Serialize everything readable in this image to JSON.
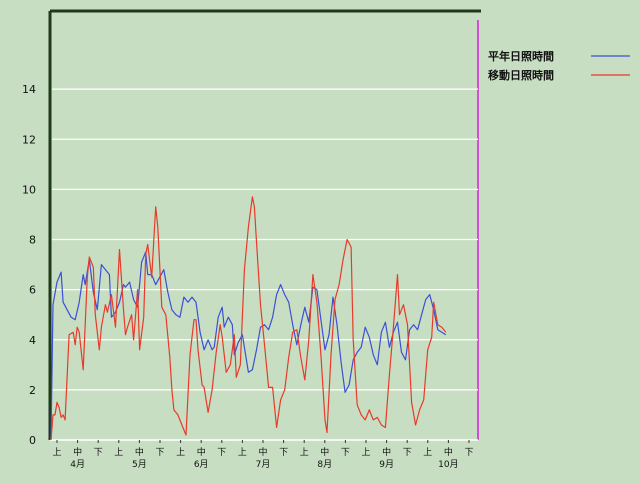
{
  "chart_data": {
    "type": "line",
    "title": "",
    "xlabel": "",
    "ylabel": "",
    "ylim": [
      0,
      16
    ],
    "yticks": [
      0,
      2,
      4,
      6,
      8,
      10,
      12,
      14
    ],
    "grid": true,
    "legend_position": "top-right",
    "x_period_labels": [
      "上",
      "中",
      "下",
      "上",
      "中",
      "下",
      "上",
      "中",
      "下",
      "上",
      "中",
      "下",
      "上",
      "中",
      "下",
      "上",
      "中",
      "下",
      "上",
      "中",
      "下"
    ],
    "x_month_labels": [
      "4月",
      "5月",
      "6月",
      "7月",
      "8月",
      "9月",
      "10月"
    ],
    "x_count": 210,
    "series": [
      {
        "name": "平年日照時間",
        "color": "#3b4fd8",
        "points": [
          [
            0,
            0
          ],
          [
            1,
            5.4
          ],
          [
            3,
            6.3
          ],
          [
            5,
            6.7
          ],
          [
            6,
            5.5
          ],
          [
            8,
            5.2
          ],
          [
            10,
            4.9
          ],
          [
            12,
            4.8
          ],
          [
            14,
            5.5
          ],
          [
            16,
            6.6
          ],
          [
            17,
            6.2
          ],
          [
            19,
            7.2
          ],
          [
            21,
            5.9
          ],
          [
            23,
            5.2
          ],
          [
            25,
            7.0
          ],
          [
            27,
            6.8
          ],
          [
            29,
            6.6
          ],
          [
            30,
            4.9
          ],
          [
            32,
            5.1
          ],
          [
            34,
            5.5
          ],
          [
            36,
            6.2
          ],
          [
            37,
            6.1
          ],
          [
            39,
            6.3
          ],
          [
            41,
            5.6
          ],
          [
            43,
            5.3
          ],
          [
            45,
            7.1
          ],
          [
            47,
            7.5
          ],
          [
            48,
            6.6
          ],
          [
            50,
            6.6
          ],
          [
            52,
            6.2
          ],
          [
            54,
            6.5
          ],
          [
            56,
            6.8
          ],
          [
            58,
            5.9
          ],
          [
            60,
            5.2
          ],
          [
            62,
            5.0
          ],
          [
            64,
            4.9
          ],
          [
            66,
            5.7
          ],
          [
            68,
            5.5
          ],
          [
            70,
            5.7
          ],
          [
            72,
            5.5
          ],
          [
            74,
            4.3
          ],
          [
            76,
            3.6
          ],
          [
            78,
            4.0
          ],
          [
            80,
            3.6
          ],
          [
            81,
            3.7
          ],
          [
            83,
            4.9
          ],
          [
            85,
            5.3
          ],
          [
            86,
            4.5
          ],
          [
            88,
            4.9
          ],
          [
            90,
            4.6
          ],
          [
            91,
            3.4
          ],
          [
            93,
            3.9
          ],
          [
            95,
            4.2
          ],
          [
            96,
            3.7
          ],
          [
            98,
            2.7
          ],
          [
            100,
            2.8
          ],
          [
            102,
            3.6
          ],
          [
            104,
            4.5
          ],
          [
            106,
            4.6
          ],
          [
            108,
            4.4
          ],
          [
            110,
            4.9
          ],
          [
            112,
            5.8
          ],
          [
            114,
            6.2
          ],
          [
            116,
            5.8
          ],
          [
            118,
            5.5
          ],
          [
            120,
            4.6
          ],
          [
            122,
            3.8
          ],
          [
            124,
            4.6
          ],
          [
            126,
            5.3
          ],
          [
            128,
            4.7
          ],
          [
            130,
            6.1
          ],
          [
            132,
            6.0
          ],
          [
            134,
            4.8
          ],
          [
            136,
            3.6
          ],
          [
            138,
            4.2
          ],
          [
            140,
            5.7
          ],
          [
            142,
            4.6
          ],
          [
            144,
            3.1
          ],
          [
            146,
            1.9
          ],
          [
            148,
            2.2
          ],
          [
            150,
            3.2
          ],
          [
            152,
            3.5
          ],
          [
            154,
            3.7
          ],
          [
            156,
            4.5
          ],
          [
            158,
            4.1
          ],
          [
            160,
            3.4
          ],
          [
            162,
            3.0
          ],
          [
            164,
            4.3
          ],
          [
            166,
            4.7
          ],
          [
            168,
            3.7
          ],
          [
            170,
            4.3
          ],
          [
            172,
            4.7
          ],
          [
            174,
            3.5
          ],
          [
            176,
            3.2
          ],
          [
            178,
            4.4
          ],
          [
            180,
            4.6
          ],
          [
            182,
            4.4
          ],
          [
            184,
            5.0
          ],
          [
            186,
            5.6
          ],
          [
            188,
            5.8
          ],
          [
            190,
            5.2
          ],
          [
            192,
            4.4
          ],
          [
            194,
            4.3
          ],
          [
            196,
            4.2
          ]
        ]
      },
      {
        "name": "移動日照時間",
        "color": "#e83a2a",
        "points": [
          [
            0,
            0
          ],
          [
            1,
            1.0
          ],
          [
            2,
            1.0
          ],
          [
            3,
            1.5
          ],
          [
            4,
            1.3
          ],
          [
            5,
            0.9
          ],
          [
            6,
            1.0
          ],
          [
            7,
            0.8
          ],
          [
            9,
            4.2
          ],
          [
            11,
            4.3
          ],
          [
            12,
            3.8
          ],
          [
            13,
            4.5
          ],
          [
            14,
            4.3
          ],
          [
            16,
            2.8
          ],
          [
            18,
            6.5
          ],
          [
            19,
            7.3
          ],
          [
            21,
            6.9
          ],
          [
            22,
            5.0
          ],
          [
            24,
            3.6
          ],
          [
            25,
            4.5
          ],
          [
            27,
            5.4
          ],
          [
            28,
            5.1
          ],
          [
            30,
            5.8
          ],
          [
            32,
            4.5
          ],
          [
            34,
            7.6
          ],
          [
            36,
            5.2
          ],
          [
            37,
            4.2
          ],
          [
            38,
            4.5
          ],
          [
            40,
            5.0
          ],
          [
            41,
            4.0
          ],
          [
            43,
            6.0
          ],
          [
            44,
            3.6
          ],
          [
            46,
            4.9
          ],
          [
            47,
            7.4
          ],
          [
            48,
            7.8
          ],
          [
            50,
            6.5
          ],
          [
            52,
            9.3
          ],
          [
            53,
            8.5
          ],
          [
            55,
            5.3
          ],
          [
            57,
            5.0
          ],
          [
            59,
            3.3
          ],
          [
            60,
            2.0
          ],
          [
            61,
            1.2
          ],
          [
            63,
            1.0
          ],
          [
            65,
            0.6
          ],
          [
            67,
            0.2
          ],
          [
            69,
            3.4
          ],
          [
            71,
            4.8
          ],
          [
            72,
            4.8
          ],
          [
            73,
            3.6
          ],
          [
            75,
            2.2
          ],
          [
            76,
            2.1
          ],
          [
            78,
            1.1
          ],
          [
            80,
            2.0
          ],
          [
            82,
            3.5
          ],
          [
            84,
            4.6
          ],
          [
            85,
            4.1
          ],
          [
            87,
            2.7
          ],
          [
            89,
            3.0
          ],
          [
            91,
            4.2
          ],
          [
            92,
            2.5
          ],
          [
            94,
            3.0
          ],
          [
            96,
            6.8
          ],
          [
            98,
            8.5
          ],
          [
            100,
            9.7
          ],
          [
            101,
            9.3
          ],
          [
            102,
            7.9
          ],
          [
            104,
            5.4
          ],
          [
            106,
            3.8
          ],
          [
            108,
            2.1
          ],
          [
            110,
            2.1
          ],
          [
            112,
            0.5
          ],
          [
            114,
            1.6
          ],
          [
            116,
            2.0
          ],
          [
            118,
            3.3
          ],
          [
            120,
            4.3
          ],
          [
            122,
            4.4
          ],
          [
            124,
            3.3
          ],
          [
            126,
            2.4
          ],
          [
            128,
            4.0
          ],
          [
            130,
            6.6
          ],
          [
            132,
            5.5
          ],
          [
            134,
            3.4
          ],
          [
            136,
            0.8
          ],
          [
            137,
            0.3
          ],
          [
            139,
            3.4
          ],
          [
            141,
            5.6
          ],
          [
            143,
            6.2
          ],
          [
            145,
            7.2
          ],
          [
            147,
            8.0
          ],
          [
            149,
            7.7
          ],
          [
            150,
            4.0
          ],
          [
            152,
            1.4
          ],
          [
            154,
            1.0
          ],
          [
            156,
            0.8
          ],
          [
            158,
            1.2
          ],
          [
            160,
            0.8
          ],
          [
            162,
            0.9
          ],
          [
            164,
            0.6
          ],
          [
            166,
            0.5
          ],
          [
            168,
            2.6
          ],
          [
            170,
            4.5
          ],
          [
            172,
            6.6
          ],
          [
            173,
            5.0
          ],
          [
            175,
            5.4
          ],
          [
            177,
            4.6
          ],
          [
            179,
            1.5
          ],
          [
            181,
            0.6
          ],
          [
            183,
            1.2
          ],
          [
            185,
            1.6
          ],
          [
            187,
            3.6
          ],
          [
            189,
            4.1
          ],
          [
            190,
            5.5
          ],
          [
            192,
            4.6
          ],
          [
            194,
            4.5
          ],
          [
            196,
            4.3
          ]
        ]
      }
    ]
  }
}
